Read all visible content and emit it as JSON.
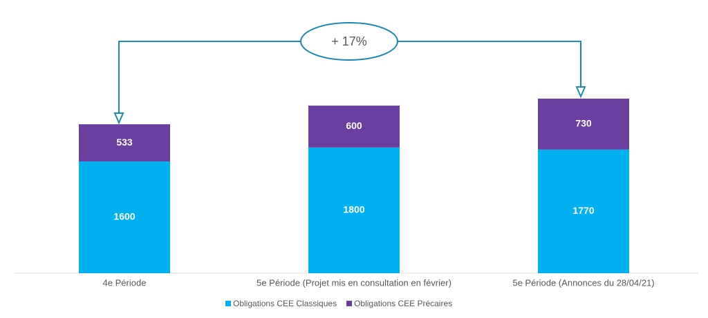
{
  "chart_data": {
    "type": "stacked_bar",
    "annotation": "+ 17%",
    "categories": [
      "4e Période",
      "5e Période (Projet mis en consultation en février)",
      "5e Période (Annonces du 28/04/21)"
    ],
    "series": [
      {
        "name": "Obligations CEE Classiques",
        "color": "#00b0f0",
        "values": [
          1600,
          1800,
          1770
        ]
      },
      {
        "name": "Obligations CEE Précaires",
        "color": "#6b3fa0",
        "values": [
          533,
          600,
          730
        ]
      }
    ]
  }
}
